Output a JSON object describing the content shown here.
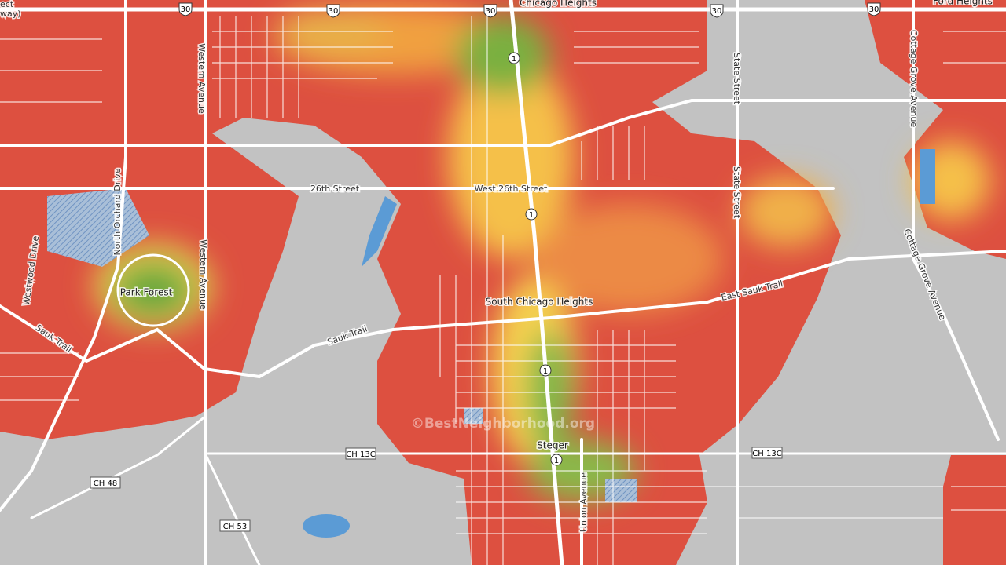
{
  "places": [
    "Chicago Heights",
    "Ford Heights",
    "Park Forest",
    "South Chicago Heights",
    "Steger"
  ],
  "streets": [
    "Western Avenue",
    "Western Avenue",
    "North Orchard Drive",
    "Westwood Drive",
    "Sauk Trail",
    "Sauk Trail",
    "26th Street",
    "West 26th Street",
    "East Sauk Trail",
    "State Street",
    "State Street",
    "Cottage Grove Avenue",
    "Cottage Grove Avenue",
    "Union Avenue"
  ],
  "us_route_shields": [
    "30",
    "30",
    "30",
    "30",
    "30"
  ],
  "state_route_shields": [
    "1",
    "1",
    "1",
    "1"
  ],
  "county_roads": [
    "CH 13C",
    "CH 13C",
    "CH 48",
    "CH 53"
  ],
  "partial_labels": [
    "ect",
    "way)"
  ],
  "watermark": "©BestNeighborhood.org"
}
